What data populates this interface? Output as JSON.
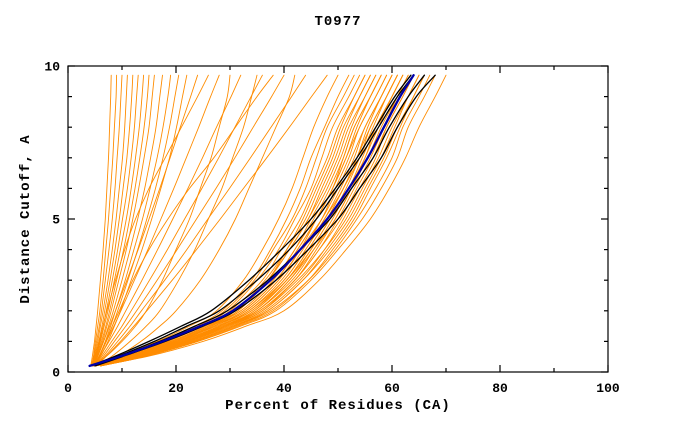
{
  "title": "T0977",
  "chart_data": {
    "type": "line",
    "title": "T0977",
    "xlabel": "Percent of Residues (CA)",
    "ylabel": "Distance Cutoff, A",
    "xlim": [
      0,
      100
    ],
    "ylim": [
      0,
      10
    ],
    "x_major_ticks": [
      0,
      20,
      40,
      60,
      80,
      100
    ],
    "x_minor_ticks": [
      10,
      30,
      50,
      70,
      90
    ],
    "y_major_ticks": [
      0,
      5,
      10
    ],
    "y_minor_ticks": [
      1,
      2,
      3,
      4,
      6,
      7,
      8,
      9
    ],
    "grid": false,
    "legend": false,
    "colors": {
      "o": "#ff8c00",
      "k": "#000000",
      "b": "#0000a8"
    },
    "y_levels": [
      0.2,
      0.5,
      1,
      1.5,
      2,
      3,
      4,
      5,
      6,
      7,
      8,
      9,
      9.7
    ],
    "series": [
      {
        "g": "o",
        "x": [
          5,
          9,
          16.5,
          22.5,
          27.5,
          32.5,
          36,
          39,
          41.5,
          43.5,
          45.5,
          48,
          50
        ]
      },
      {
        "g": "o",
        "x": [
          4,
          9.5,
          17,
          23.5,
          28.5,
          34,
          37.5,
          40.5,
          43,
          45,
          47.5,
          50,
          52
        ]
      },
      {
        "g": "o",
        "x": [
          6,
          10,
          17.5,
          24,
          29,
          34.5,
          38,
          41.5,
          44,
          46,
          48,
          51,
          53
        ]
      },
      {
        "g": "o",
        "x": [
          5,
          10,
          18,
          24.5,
          29.5,
          35,
          39,
          42,
          45,
          47,
          49,
          52,
          54
        ]
      },
      {
        "g": "o",
        "x": [
          4,
          10,
          18,
          25,
          30,
          36,
          39.5,
          43,
          45.5,
          48,
          50,
          53,
          55
        ]
      },
      {
        "g": "o",
        "x": [
          5,
          12,
          20,
          26.5,
          31.5,
          37,
          40.5,
          43.5,
          46,
          48.5,
          50.5,
          53,
          55
        ]
      },
      {
        "g": "o",
        "x": [
          5,
          10,
          18.5,
          25,
          31,
          36.5,
          40.5,
          44,
          46.5,
          49,
          51,
          54,
          56
        ]
      },
      {
        "g": "o",
        "x": [
          6,
          11,
          19,
          26,
          31,
          37,
          41,
          44.5,
          47,
          49.5,
          51.5,
          54,
          56
        ]
      },
      {
        "g": "o",
        "x": [
          4,
          10.5,
          19,
          25.5,
          31.5,
          37,
          41,
          44.5,
          47.5,
          50,
          52,
          55,
          57
        ]
      },
      {
        "g": "o",
        "x": [
          5,
          11.5,
          19.5,
          26,
          32,
          38,
          42,
          45,
          48,
          50.5,
          52.5,
          55,
          57
        ]
      },
      {
        "g": "o",
        "x": [
          5,
          10.5,
          19,
          26,
          32,
          38,
          42,
          45.5,
          48.5,
          51,
          53,
          56,
          58
        ]
      },
      {
        "g": "o",
        "x": [
          4,
          11,
          20,
          27,
          33,
          39,
          43,
          46,
          49,
          51.5,
          53.5,
          56,
          58
        ]
      },
      {
        "g": "o",
        "x": [
          6,
          12,
          20.5,
          27,
          32.5,
          38.5,
          42.5,
          46,
          49,
          51,
          53,
          56,
          58
        ]
      },
      {
        "g": "o",
        "x": [
          5,
          11,
          19.5,
          26.5,
          32.5,
          38.5,
          42.5,
          46,
          49,
          51.5,
          54,
          57,
          59
        ]
      },
      {
        "g": "o",
        "x": [
          5,
          12,
          21,
          28,
          33.5,
          39.5,
          43.5,
          47,
          49.5,
          52,
          54,
          57,
          59
        ]
      },
      {
        "g": "o",
        "x": [
          4,
          11,
          20,
          27,
          33,
          39,
          43,
          47,
          50,
          52.5,
          55,
          58,
          60
        ]
      },
      {
        "g": "o",
        "x": [
          5,
          12,
          21,
          28,
          34,
          40,
          44,
          47.5,
          50.5,
          53,
          55,
          58,
          60
        ]
      },
      {
        "g": "o",
        "x": [
          6,
          13,
          22,
          29,
          34.5,
          40.5,
          44.5,
          48,
          51,
          53.5,
          55.5,
          58,
          60
        ]
      },
      {
        "g": "o",
        "x": [
          4,
          11,
          20,
          27.5,
          33.5,
          40,
          44,
          47.5,
          51,
          53.5,
          56,
          59,
          61
        ]
      },
      {
        "g": "o",
        "x": [
          5,
          12,
          21.5,
          28.5,
          34.5,
          40.5,
          44.5,
          48,
          51,
          54,
          56,
          59,
          61
        ]
      },
      {
        "g": "o",
        "x": [
          6,
          13,
          22,
          29,
          35,
          41,
          45,
          48.5,
          51.5,
          54,
          56.5,
          59,
          61
        ]
      },
      {
        "g": "o",
        "x": [
          4,
          11.5,
          20.5,
          28,
          34,
          40.5,
          45,
          48.5,
          52,
          54.5,
          57,
          60,
          62
        ]
      },
      {
        "g": "o",
        "x": [
          5,
          12.5,
          22,
          29,
          35,
          41.5,
          45.5,
          49,
          52,
          55,
          57,
          60,
          62
        ]
      },
      {
        "g": "o",
        "x": [
          6,
          13.5,
          22.5,
          29.5,
          35.5,
          42,
          46,
          49.5,
          52.5,
          55,
          57.5,
          60,
          62
        ]
      },
      {
        "g": "o",
        "x": [
          5,
          12,
          21,
          28.5,
          35,
          41,
          45.5,
          49.5,
          52.5,
          55.5,
          58,
          61,
          63
        ]
      },
      {
        "g": "o",
        "x": [
          6,
          13,
          22.5,
          30,
          36,
          42,
          46.5,
          50,
          53,
          56,
          58.5,
          61,
          63
        ]
      },
      {
        "g": "o",
        "x": [
          4,
          12,
          21.5,
          29,
          35.5,
          42,
          46.5,
          50.5,
          53.5,
          56.5,
          59,
          62,
          64
        ]
      },
      {
        "g": "o",
        "x": [
          5,
          13,
          23,
          30.5,
          36.5,
          43,
          47.5,
          51,
          54,
          57,
          59,
          62,
          64
        ]
      },
      {
        "g": "o",
        "x": [
          5,
          12.5,
          22,
          29.5,
          36,
          42.5,
          47.5,
          51.5,
          54.5,
          57.5,
          60,
          63,
          65
        ]
      },
      {
        "g": "o",
        "x": [
          6,
          14,
          23.5,
          31,
          37,
          43.5,
          48,
          52,
          55,
          58,
          60.5,
          63,
          65
        ]
      },
      {
        "g": "o",
        "x": [
          5,
          13,
          23,
          30.5,
          37,
          43.5,
          48.5,
          52.5,
          55.5,
          58.5,
          61,
          64,
          66
        ]
      },
      {
        "g": "o",
        "x": [
          6,
          14,
          24,
          31.5,
          38,
          44.5,
          49,
          53,
          56,
          59,
          61.5,
          64,
          66
        ]
      },
      {
        "g": "o",
        "x": [
          5,
          13.5,
          23.5,
          31,
          37.5,
          44.5,
          49.5,
          53.5,
          57,
          60,
          62,
          65,
          67
        ]
      },
      {
        "g": "o",
        "x": [
          6,
          14,
          24,
          32,
          38.5,
          45,
          50,
          54.5,
          58,
          61,
          63,
          66,
          68
        ]
      },
      {
        "g": "o",
        "x": [
          5,
          14.5,
          25,
          33,
          40,
          46.5,
          51.5,
          56,
          59.5,
          62.5,
          65,
          68,
          70
        ]
      },
      {
        "g": "o",
        "x": [
          4.6,
          5.4,
          6.6,
          7.7,
          8.8,
          10.9,
          13,
          15,
          17,
          18.9,
          20.8,
          22.7,
          24
        ]
      },
      {
        "g": "o",
        "x": [
          4.7,
          5.7,
          7.1,
          8.5,
          9.8,
          12.3,
          14.8,
          17.2,
          19.6,
          21.9,
          24.2,
          26.4,
          28
        ]
      },
      {
        "g": "o",
        "x": [
          4.9,
          5.9,
          7.6,
          9.2,
          10.7,
          13.7,
          16.6,
          19.4,
          22.2,
          24.9,
          27.5,
          30.2,
          32
        ]
      },
      {
        "g": "o",
        "x": [
          5,
          6.2,
          8.1,
          10,
          11.7,
          15.1,
          18.4,
          21.6,
          24.8,
          27.9,
          30.9,
          33.9,
          36
        ]
      },
      {
        "g": "o",
        "x": [
          5.1,
          6.5,
          8.6,
          10.7,
          12.7,
          16.5,
          20.2,
          23.8,
          27.4,
          30.9,
          34.3,
          37.7,
          40
        ]
      },
      {
        "g": "o",
        "x": [
          5.2,
          6.8,
          9.2,
          11.5,
          13.6,
          17.9,
          22,
          25.9,
          29.9,
          33.8,
          37.6,
          41.4,
          44
        ]
      },
      {
        "g": "o",
        "x": [
          5.3,
          7,
          9.7,
          12.2,
          14.6,
          19.3,
          23.8,
          28.2,
          32.5,
          36.8,
          41,
          45.1,
          48
        ]
      },
      {
        "g": "o",
        "x": [
          4,
          7,
          10,
          12.5,
          14.5,
          17.5,
          20,
          22.5,
          24.5,
          26.5,
          28,
          29.5,
          30
        ]
      },
      {
        "g": "o",
        "x": [
          5,
          8,
          11.5,
          14.5,
          17,
          20.5,
          23.5,
          26,
          28.5,
          30.5,
          32.5,
          34,
          35
        ]
      },
      {
        "g": "o",
        "x": [
          4,
          9,
          13.5,
          17,
          20,
          24.5,
          28,
          31,
          33.5,
          36,
          38.5,
          41,
          42
        ]
      },
      {
        "g": "o",
        "x": [
          4.5,
          5,
          5.8,
          6.5,
          7.2,
          8.8,
          10.5,
          12.5,
          15,
          18,
          21,
          24,
          26
        ]
      },
      {
        "g": "o",
        "x": [
          5,
          5.8,
          7,
          8.2,
          9.5,
          12,
          15,
          18.5,
          22.5,
          27,
          31,
          35,
          38
        ]
      },
      {
        "g": "o",
        "x": [
          4.2,
          4.5,
          4.9,
          5.2,
          5.5,
          6,
          6.5,
          6.9,
          7.2,
          7.5,
          7.7,
          7.9,
          8
        ]
      },
      {
        "g": "o",
        "x": [
          4.3,
          4.7,
          5.1,
          5.5,
          5.9,
          6.5,
          7,
          7.5,
          7.9,
          8.3,
          8.6,
          8.9,
          9
        ]
      },
      {
        "g": "o",
        "x": [
          4.3,
          4.8,
          5.3,
          5.8,
          6.2,
          6.9,
          7.6,
          8.2,
          8.7,
          9.1,
          9.5,
          9.8,
          10
        ]
      },
      {
        "g": "o",
        "x": [
          4.4,
          4.9,
          5.5,
          6,
          6.5,
          7.4,
          8.2,
          8.9,
          9.5,
          10.1,
          10.5,
          10.8,
          11
        ]
      },
      {
        "g": "o",
        "x": [
          4.4,
          5,
          5.7,
          6.3,
          6.8,
          7.8,
          8.7,
          9.5,
          10.2,
          10.9,
          11.4,
          11.8,
          12
        ]
      },
      {
        "g": "o",
        "x": [
          4.5,
          5.1,
          5.9,
          6.5,
          7.1,
          8.2,
          9.2,
          10.1,
          11,
          11.7,
          12.3,
          12.7,
          13
        ]
      },
      {
        "g": "o",
        "x": [
          4.5,
          5.2,
          6,
          6.7,
          7.4,
          8.6,
          9.7,
          10.8,
          11.7,
          12.5,
          13.2,
          13.7,
          14
        ]
      },
      {
        "g": "o",
        "x": [
          4.6,
          5.3,
          6.2,
          7,
          7.7,
          9,
          10.3,
          11.4,
          12.4,
          13.3,
          14.1,
          14.7,
          15
        ]
      },
      {
        "g": "o",
        "x": [
          4.6,
          5.4,
          6.4,
          7.2,
          8,
          9.4,
          10.8,
          12,
          13.1,
          14.1,
          15,
          15.6,
          16
        ]
      },
      {
        "g": "o",
        "x": [
          4.7,
          5.5,
          6.6,
          7.5,
          8.4,
          10,
          11.5,
          12.9,
          14.2,
          15.3,
          16.3,
          17,
          17.5
        ]
      },
      {
        "g": "o",
        "x": [
          4.7,
          5.7,
          6.9,
          7.9,
          8.8,
          10.6,
          12.2,
          13.8,
          15.2,
          16.5,
          17.6,
          18.5,
          19
        ]
      },
      {
        "g": "o",
        "x": [
          4.8,
          5.8,
          7.1,
          8.2,
          9.2,
          11.1,
          12.9,
          14.6,
          16.2,
          17.6,
          18.8,
          19.8,
          20.5
        ]
      },
      {
        "g": "o",
        "x": [
          4.8,
          6,
          7.4,
          8.6,
          9.7,
          11.7,
          13.7,
          15.5,
          17.2,
          18.8,
          20.1,
          21.2,
          22
        ]
      },
      {
        "g": "k",
        "x": [
          4,
          9,
          16,
          22,
          28,
          35,
          41,
          46,
          50,
          54,
          57.5,
          61,
          64
        ]
      },
      {
        "g": "k",
        "x": [
          4,
          9.5,
          17,
          23.5,
          29.5,
          37,
          43,
          48.5,
          52.5,
          56.5,
          59.5,
          63,
          66
        ]
      },
      {
        "g": "k",
        "x": [
          5,
          10,
          18,
          25,
          31,
          38.5,
          44.5,
          50,
          54,
          58,
          61,
          64.5,
          68
        ]
      },
      {
        "g": "k",
        "x": [
          4,
          8.5,
          15,
          21,
          26.5,
          33.5,
          39.5,
          45,
          49.5,
          53.5,
          57,
          60.5,
          63.5
        ]
      },
      {
        "g": "b",
        "x": [
          4,
          9.5,
          17.5,
          24.5,
          30.5,
          37.5,
          43,
          48,
          52,
          55.5,
          58.5,
          61.5,
          64
        ]
      }
    ]
  }
}
